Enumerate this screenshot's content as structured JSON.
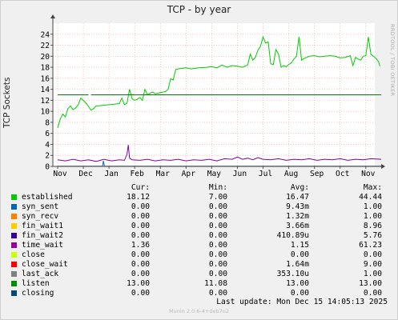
{
  "chart_data": {
    "type": "line",
    "title": "TCP - by year",
    "ylabel": "TCP Sockets",
    "ylim": [
      0,
      26
    ],
    "yticks": [
      0,
      2,
      4,
      6,
      8,
      10,
      12,
      14,
      16,
      18,
      20,
      22,
      24
    ],
    "xlabels": [
      "Nov",
      "Dec",
      "Jan",
      "Feb",
      "Mar",
      "Apr",
      "May",
      "Jun",
      "Jul",
      "Aug",
      "Sep",
      "Oct",
      "Nov"
    ],
    "grid": true,
    "series": [
      {
        "name": "established",
        "color": "#00cc00",
        "points": [
          [
            0.0,
            7.0
          ],
          [
            0.1,
            8.6
          ],
          [
            0.2,
            9.5
          ],
          [
            0.3,
            9.0
          ],
          [
            0.4,
            10.5
          ],
          [
            0.5,
            11.0
          ],
          [
            0.6,
            10.3
          ],
          [
            0.7,
            10.6
          ],
          [
            0.8,
            11.2
          ],
          [
            0.9,
            12.4
          ],
          [
            1.0,
            12.0
          ],
          [
            1.1,
            11.5
          ],
          [
            1.2,
            10.9
          ],
          [
            1.3,
            10.2
          ],
          [
            1.4,
            10.5
          ],
          [
            1.5,
            11.0
          ],
          [
            1.6,
            11.0
          ],
          [
            1.8,
            11.1
          ],
          [
            2.0,
            11.2
          ],
          [
            2.2,
            11.3
          ],
          [
            2.4,
            11.4
          ],
          [
            2.5,
            12.4
          ],
          [
            2.6,
            11.2
          ],
          [
            2.7,
            11.5
          ],
          [
            2.8,
            14.0
          ],
          [
            2.9,
            12.3
          ],
          [
            3.0,
            12.0
          ],
          [
            3.1,
            12.2
          ],
          [
            3.2,
            12.5
          ],
          [
            3.3,
            12.0
          ],
          [
            3.4,
            14.0
          ],
          [
            3.5,
            13.0
          ],
          [
            3.6,
            13.3
          ],
          [
            3.7,
            13.5
          ],
          [
            3.8,
            13.2
          ],
          [
            4.0,
            13.4
          ],
          [
            4.2,
            13.6
          ],
          [
            4.3,
            14.0
          ],
          [
            4.4,
            15.9
          ],
          [
            4.5,
            15.7
          ],
          [
            4.6,
            17.6
          ],
          [
            4.8,
            17.8
          ],
          [
            5.0,
            17.9
          ],
          [
            5.2,
            17.7
          ],
          [
            5.5,
            17.9
          ],
          [
            5.8,
            18.0
          ],
          [
            6.0,
            18.1
          ],
          [
            6.2,
            17.9
          ],
          [
            6.4,
            18.4
          ],
          [
            6.6,
            18.0
          ],
          [
            6.8,
            18.3
          ],
          [
            7.0,
            18.2
          ],
          [
            7.2,
            18.0
          ],
          [
            7.4,
            18.4
          ],
          [
            7.5,
            20.4
          ],
          [
            7.6,
            19.3
          ],
          [
            7.7,
            19.8
          ],
          [
            7.8,
            21.1
          ],
          [
            7.9,
            21.8
          ],
          [
            8.0,
            23.5
          ],
          [
            8.1,
            22.4
          ],
          [
            8.2,
            22.6
          ],
          [
            8.3,
            18.6
          ],
          [
            8.4,
            18.5
          ],
          [
            8.5,
            21.2
          ],
          [
            8.6,
            20.4
          ],
          [
            8.7,
            18.0
          ],
          [
            8.8,
            18.3
          ],
          [
            8.9,
            18.1
          ],
          [
            9.0,
            18.5
          ],
          [
            9.1,
            18.8
          ],
          [
            9.2,
            19.5
          ],
          [
            9.3,
            20.0
          ],
          [
            9.4,
            23.5
          ],
          [
            9.5,
            19.3
          ],
          [
            9.6,
            19.6
          ],
          [
            9.8,
            20.0
          ],
          [
            10.0,
            20.1
          ],
          [
            10.2,
            19.9
          ],
          [
            10.4,
            20.0
          ],
          [
            10.6,
            20.1
          ],
          [
            10.8,
            20.0
          ],
          [
            11.0,
            19.7
          ],
          [
            11.2,
            19.8
          ],
          [
            11.4,
            20.1
          ],
          [
            11.5,
            18.3
          ],
          [
            11.6,
            19.8
          ],
          [
            11.7,
            19.5
          ],
          [
            11.8,
            19.3
          ],
          [
            11.9,
            20.0
          ],
          [
            12.0,
            20.1
          ],
          [
            12.1,
            23.5
          ],
          [
            12.2,
            20.3
          ],
          [
            12.3,
            20.0
          ],
          [
            12.4,
            19.6
          ],
          [
            12.5,
            19.0
          ],
          [
            12.55,
            18.2
          ]
        ]
      },
      {
        "name": "listen",
        "color": "#008000",
        "points": [
          [
            0.0,
            13.0
          ],
          [
            1.2,
            13.0
          ],
          [
            1.25,
            null
          ],
          [
            1.3,
            13.0
          ],
          [
            12.6,
            13.0
          ]
        ]
      },
      {
        "name": "time_wait",
        "color": "#8000a0",
        "points": [
          [
            0.0,
            1.2
          ],
          [
            0.3,
            1.0
          ],
          [
            0.6,
            1.3
          ],
          [
            0.9,
            1.0
          ],
          [
            1.2,
            1.2
          ],
          [
            1.5,
            0.9
          ],
          [
            1.8,
            1.3
          ],
          [
            2.1,
            1.0
          ],
          [
            2.4,
            1.2
          ],
          [
            2.6,
            1.1
          ],
          [
            2.7,
            2.2
          ],
          [
            2.75,
            3.9
          ],
          [
            2.8,
            1.5
          ],
          [
            2.9,
            1.2
          ],
          [
            3.2,
            1.1
          ],
          [
            3.5,
            1.3
          ],
          [
            3.8,
            1.0
          ],
          [
            4.1,
            1.2
          ],
          [
            4.4,
            1.1
          ],
          [
            4.7,
            1.3
          ],
          [
            5.0,
            1.0
          ],
          [
            5.3,
            1.2
          ],
          [
            5.6,
            1.1
          ],
          [
            5.9,
            1.3
          ],
          [
            6.2,
            1.0
          ],
          [
            6.5,
            1.4
          ],
          [
            6.8,
            1.3
          ],
          [
            7.0,
            1.7
          ],
          [
            7.2,
            1.3
          ],
          [
            7.4,
            1.5
          ],
          [
            7.6,
            1.2
          ],
          [
            7.8,
            1.6
          ],
          [
            8.0,
            1.3
          ],
          [
            8.3,
            1.2
          ],
          [
            8.6,
            1.4
          ],
          [
            8.9,
            1.1
          ],
          [
            9.2,
            1.3
          ],
          [
            9.5,
            1.2
          ],
          [
            9.8,
            1.4
          ],
          [
            10.1,
            1.1
          ],
          [
            10.4,
            1.3
          ],
          [
            10.7,
            1.2
          ],
          [
            11.0,
            1.4
          ],
          [
            11.3,
            1.1
          ],
          [
            11.6,
            1.3
          ],
          [
            11.9,
            1.2
          ],
          [
            12.2,
            1.4
          ],
          [
            12.6,
            1.3
          ]
        ]
      },
      {
        "name": "syn_sent",
        "color": "#0066b3",
        "points": [
          [
            0.0,
            0.05
          ],
          [
            1.75,
            0.05
          ],
          [
            1.78,
            1.0
          ],
          [
            1.82,
            0.05
          ],
          [
            12.6,
            0.05
          ]
        ]
      }
    ]
  },
  "legend": {
    "headers": {
      "cur": "Cur:",
      "min": "Min:",
      "avg": "Avg:",
      "max": "Max:"
    },
    "rows": [
      {
        "name": "established",
        "color": "#00cc00",
        "cur": "18.12",
        "min": "7.00",
        "avg": "16.47",
        "max": "44.44"
      },
      {
        "name": "syn_sent",
        "color": "#0066b3",
        "cur": "0.00",
        "min": "0.00",
        "avg": "9.43m",
        "max": "1.00"
      },
      {
        "name": "syn_recv",
        "color": "#ff8000",
        "cur": "0.00",
        "min": "0.00",
        "avg": "1.32m",
        "max": "1.00"
      },
      {
        "name": "fin_wait1",
        "color": "#ffcc00",
        "cur": "0.00",
        "min": "0.00",
        "avg": "3.66m",
        "max": "8.96"
      },
      {
        "name": "fin_wait2",
        "color": "#330099",
        "cur": "0.00",
        "min": "0.00",
        "avg": "410.89u",
        "max": "5.76"
      },
      {
        "name": "time_wait",
        "color": "#990099",
        "cur": "1.36",
        "min": "0.00",
        "avg": "1.15",
        "max": "61.23"
      },
      {
        "name": "close",
        "color": "#ccff00",
        "cur": "0.00",
        "min": "0.00",
        "avg": "0.00",
        "max": "0.00"
      },
      {
        "name": "close_wait",
        "color": "#ff0000",
        "cur": "0.00",
        "min": "0.00",
        "avg": "1.64m",
        "max": "9.00"
      },
      {
        "name": "last_ack",
        "color": "#808080",
        "cur": "0.00",
        "min": "0.00",
        "avg": "353.10u",
        "max": "1.00"
      },
      {
        "name": "listen",
        "color": "#008f00",
        "cur": "13.00",
        "min": "11.08",
        "avg": "13.00",
        "max": "13.00"
      },
      {
        "name": "closing",
        "color": "#00487d",
        "cur": "0.00",
        "min": "0.00",
        "avg": "0.00",
        "max": "0.00"
      }
    ]
  },
  "last_update": "Last update:  Mon Dec 15 14:05:13 2025",
  "footer": "Munin 2.0.6-4+deb7u2",
  "watermark": "RRDTOOL / TOBI OETIKER"
}
